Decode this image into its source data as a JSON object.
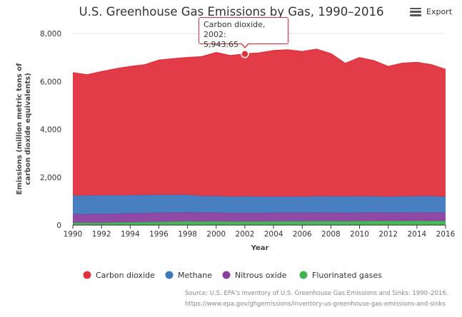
{
  "export_label": "Export",
  "tooltip": {
    "title": "Carbon dioxide, 2002:",
    "value": "5,943.65"
  },
  "source": {
    "line1": "Source: U.S. EPA's Inventory of U.S. Greenhouse Gas Emissions and Sinks: 1990–2016.",
    "line2": "https://www.epa.gov/ghgemissions/inventory-us-greenhouse-gas-emissions-and-sinks"
  },
  "chart_data": {
    "type": "area",
    "stacked": true,
    "title": "U.S. Greenhouse Gas Emissions by Gas, 1990–2016",
    "xlabel": "Year",
    "ylabel": [
      "Emissions (million metric tons of",
      "carbon dioxide equivalents)"
    ],
    "xlim": [
      1990,
      2016
    ],
    "ylim": [
      0,
      8000
    ],
    "x_ticks": [
      "1990",
      "1992",
      "1994",
      "1996",
      "1998",
      "2000",
      "2002",
      "2004",
      "2006",
      "2008",
      "2010",
      "2012",
      "2014",
      "2016"
    ],
    "y_ticks": [
      "0",
      "2,000",
      "4,000",
      "6,000",
      "8,000"
    ],
    "grid": true,
    "legend_position": "bottom",
    "x": [
      1990,
      1991,
      1992,
      1993,
      1994,
      1995,
      1996,
      1997,
      1998,
      1999,
      2000,
      2001,
      2002,
      2003,
      2004,
      2005,
      2006,
      2007,
      2008,
      2009,
      2010,
      2011,
      2012,
      2013,
      2014,
      2015,
      2016
    ],
    "series": [
      {
        "name": "Fluorinated gases",
        "color": "#3fb34f",
        "values": [
          100,
          95,
          100,
          110,
          115,
          125,
          135,
          145,
          155,
          150,
          155,
          145,
          150,
          150,
          155,
          160,
          160,
          165,
          165,
          160,
          170,
          175,
          175,
          175,
          180,
          175,
          175
        ]
      },
      {
        "name": "Nitrous oxide",
        "color": "#8a3fa0",
        "values": [
          360,
          360,
          365,
          365,
          375,
          375,
          380,
          380,
          380,
          370,
          370,
          360,
          360,
          355,
          360,
          355,
          355,
          355,
          350,
          350,
          350,
          350,
          345,
          345,
          350,
          350,
          355
        ]
      },
      {
        "name": "Methane",
        "color": "#3d78bd",
        "values": [
          780,
          780,
          780,
          770,
          760,
          760,
          750,
          740,
          730,
          700,
          690,
          690,
          690,
          690,
          680,
          680,
          680,
          690,
          690,
          690,
          690,
          680,
          670,
          680,
          680,
          690,
          660
        ]
      },
      {
        "name": "Carbon dioxide",
        "color": "#e0323e",
        "values": [
          5120,
          5040,
          5160,
          5280,
          5370,
          5430,
          5620,
          5680,
          5730,
          5810,
          5990,
          5880,
          5944,
          5990,
          6090,
          6120,
          6050,
          6130,
          5950,
          5550,
          5780,
          5660,
          5430,
          5560,
          5580,
          5480,
          5310
        ]
      }
    ],
    "legend_order": [
      "Carbon dioxide",
      "Methane",
      "Nitrous oxide",
      "Fluorinated gases"
    ],
    "highlight": {
      "series": "Carbon dioxide",
      "x": 2002
    }
  }
}
